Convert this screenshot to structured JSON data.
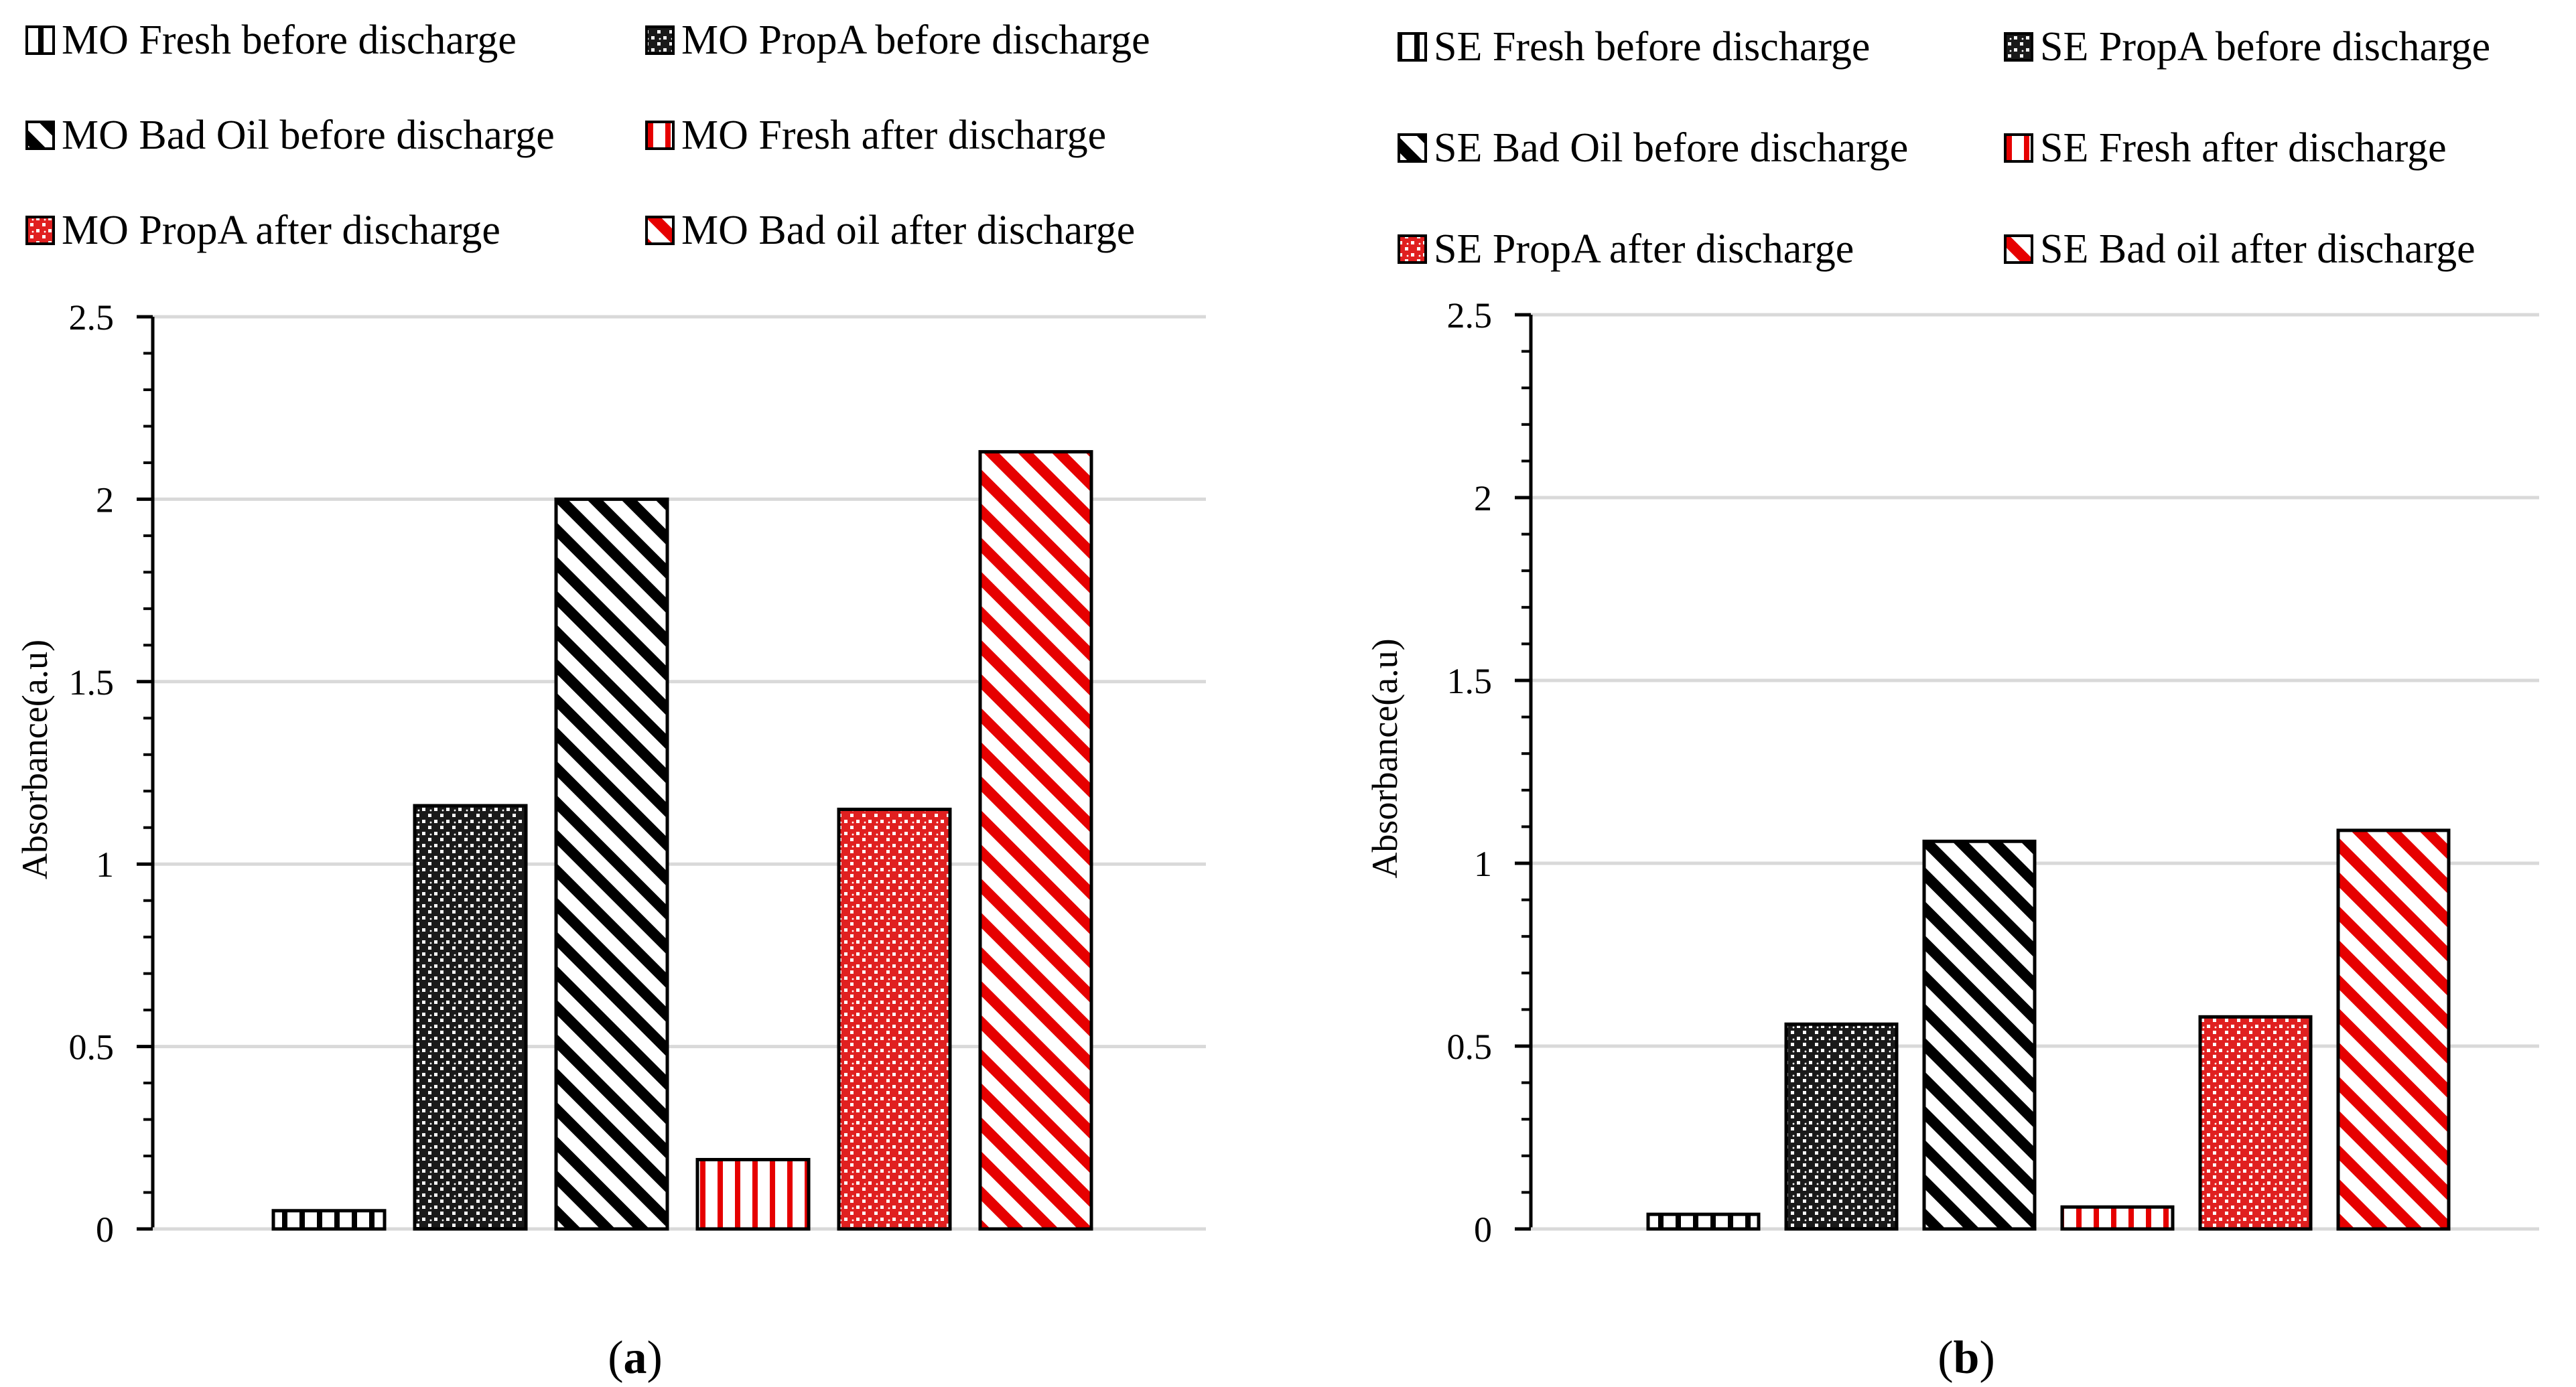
{
  "chart_data": [
    {
      "type": "bar",
      "panel_label": "a",
      "ylabel": "Absorbance(a.u)",
      "ylim": [
        0,
        2.5
      ],
      "yticks": [
        "0",
        "0.5",
        "1",
        "1.5",
        "2",
        "2.5"
      ],
      "grid": true,
      "legend_position": "top",
      "series": [
        {
          "name": "MO Fresh before discharge",
          "value": 0.05,
          "color": "#000000",
          "pattern": "vertical-lines"
        },
        {
          "name": "MO PropA before discharge",
          "value": 1.16,
          "color": "#000000",
          "pattern": "checker"
        },
        {
          "name": "MO Bad Oil before discharge",
          "value": 2.0,
          "color": "#000000",
          "pattern": "diagonal"
        },
        {
          "name": "MO Fresh after discharge",
          "value": 0.19,
          "color": "#e60000",
          "pattern": "vertical-lines"
        },
        {
          "name": "MO PropA after discharge",
          "value": 1.15,
          "color": "#e60000",
          "pattern": "checker"
        },
        {
          "name": "MO Bad oil after discharge",
          "value": 2.13,
          "color": "#e60000",
          "pattern": "diagonal"
        }
      ]
    },
    {
      "type": "bar",
      "panel_label": "b",
      "ylabel": "Absorbance(a.u)",
      "ylim": [
        0,
        2.5
      ],
      "yticks": [
        "0",
        "0.5",
        "1",
        "1.5",
        "2",
        "2.5"
      ],
      "grid": true,
      "legend_position": "top",
      "series": [
        {
          "name": "SE Fresh before discharge",
          "value": 0.04,
          "color": "#000000",
          "pattern": "vertical-lines"
        },
        {
          "name": "SE PropA before discharge",
          "value": 0.56,
          "color": "#000000",
          "pattern": "checker"
        },
        {
          "name": "SE Bad Oil before discharge",
          "value": 1.06,
          "color": "#000000",
          "pattern": "diagonal"
        },
        {
          "name": "SE Fresh after discharge",
          "value": 0.06,
          "color": "#e60000",
          "pattern": "vertical-lines"
        },
        {
          "name": "SE PropA after discharge",
          "value": 0.58,
          "color": "#e60000",
          "pattern": "checker"
        },
        {
          "name": "SE Bad oil after discharge",
          "value": 1.09,
          "color": "#e60000",
          "pattern": "diagonal"
        }
      ]
    }
  ]
}
